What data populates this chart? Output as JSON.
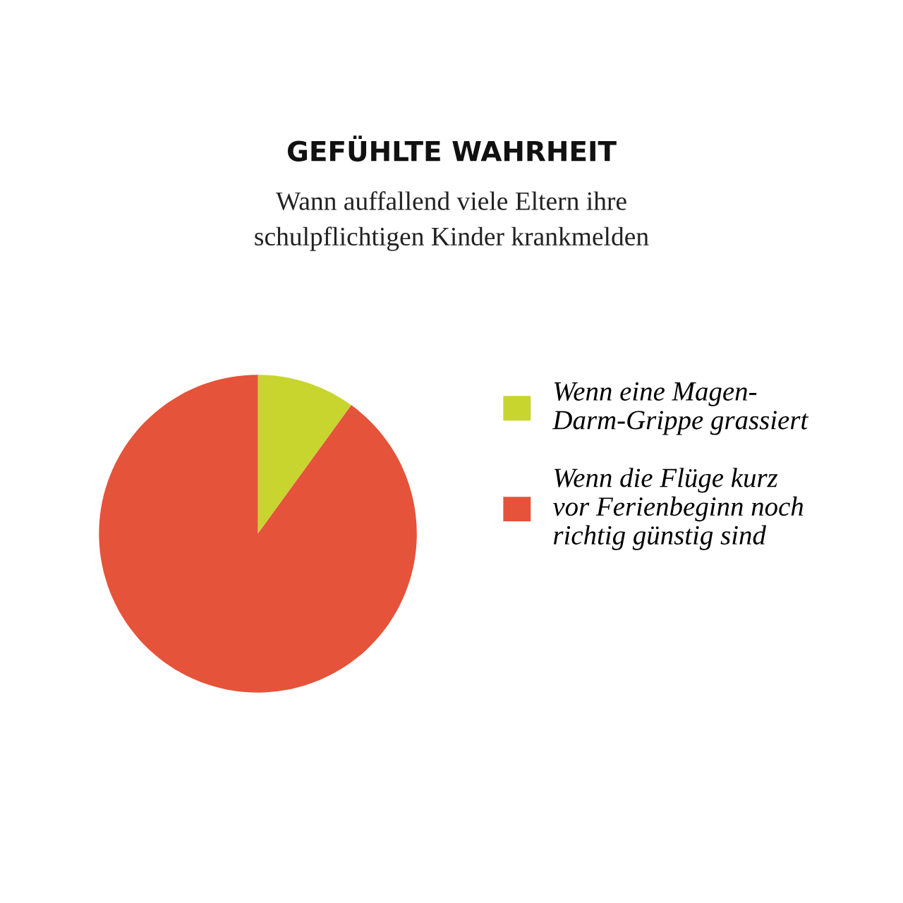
{
  "chart_data": {
    "type": "pie",
    "title": "GEFÜHLTE WAHRHEIT",
    "subtitle": "Wann auffallend viele Eltern ihre\nschulpflichtigen Kinder krankmelden",
    "categories": [
      "Wenn eine Magen-\nDarm-Grippe grassiert",
      "Wenn die Flüge kurz\nvor Ferienbeginn noch\nrichtig günstig sind"
    ],
    "values": [
      10,
      90
    ],
    "colors": [
      "#c8d52f",
      "#e5533a"
    ],
    "legend": "right"
  }
}
